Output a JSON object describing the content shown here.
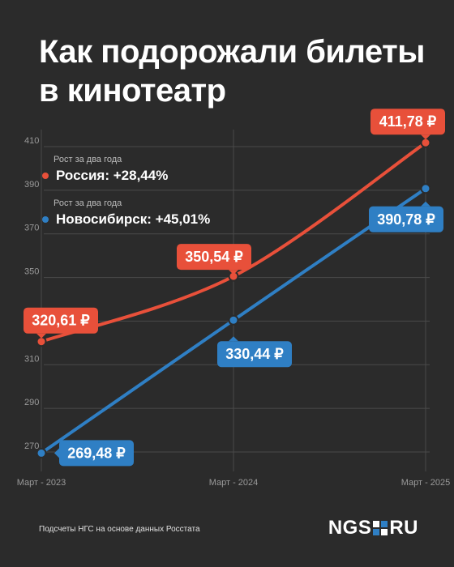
{
  "title": "Как подорожали билеты в кинотеатр",
  "legend": [
    {
      "caption": "Рост за два года",
      "label": "Россия: +28,44%",
      "color": "#e8503a"
    },
    {
      "caption": "Рост за два года",
      "label": "Новосибирск: +45,01%",
      "color": "#2f7fc4"
    }
  ],
  "footer": {
    "note": "Подсчеты НГС на основе данных Росстата",
    "logo_left": "NGS",
    "logo_right": "RU"
  },
  "chart_data": {
    "type": "line",
    "categories": [
      "Март - 2023",
      "Март - 2024",
      "Март - 2025"
    ],
    "ylim": [
      265,
      415
    ],
    "yticks": [
      270,
      290,
      310,
      330,
      350,
      370,
      390,
      410
    ],
    "grid": true,
    "series": [
      {
        "name": "Россия",
        "color": "#e8503a",
        "values": [
          320.61,
          350.54,
          411.78
        ],
        "labels": [
          "320,61 ₽",
          "350,54 ₽",
          "411,78 ₽"
        ]
      },
      {
        "name": "Новосибирск",
        "color": "#2f7fc4",
        "values": [
          269.48,
          330.44,
          390.78
        ],
        "labels": [
          "269,48 ₽",
          "330,44 ₽",
          "390,78 ₽"
        ]
      }
    ]
  }
}
